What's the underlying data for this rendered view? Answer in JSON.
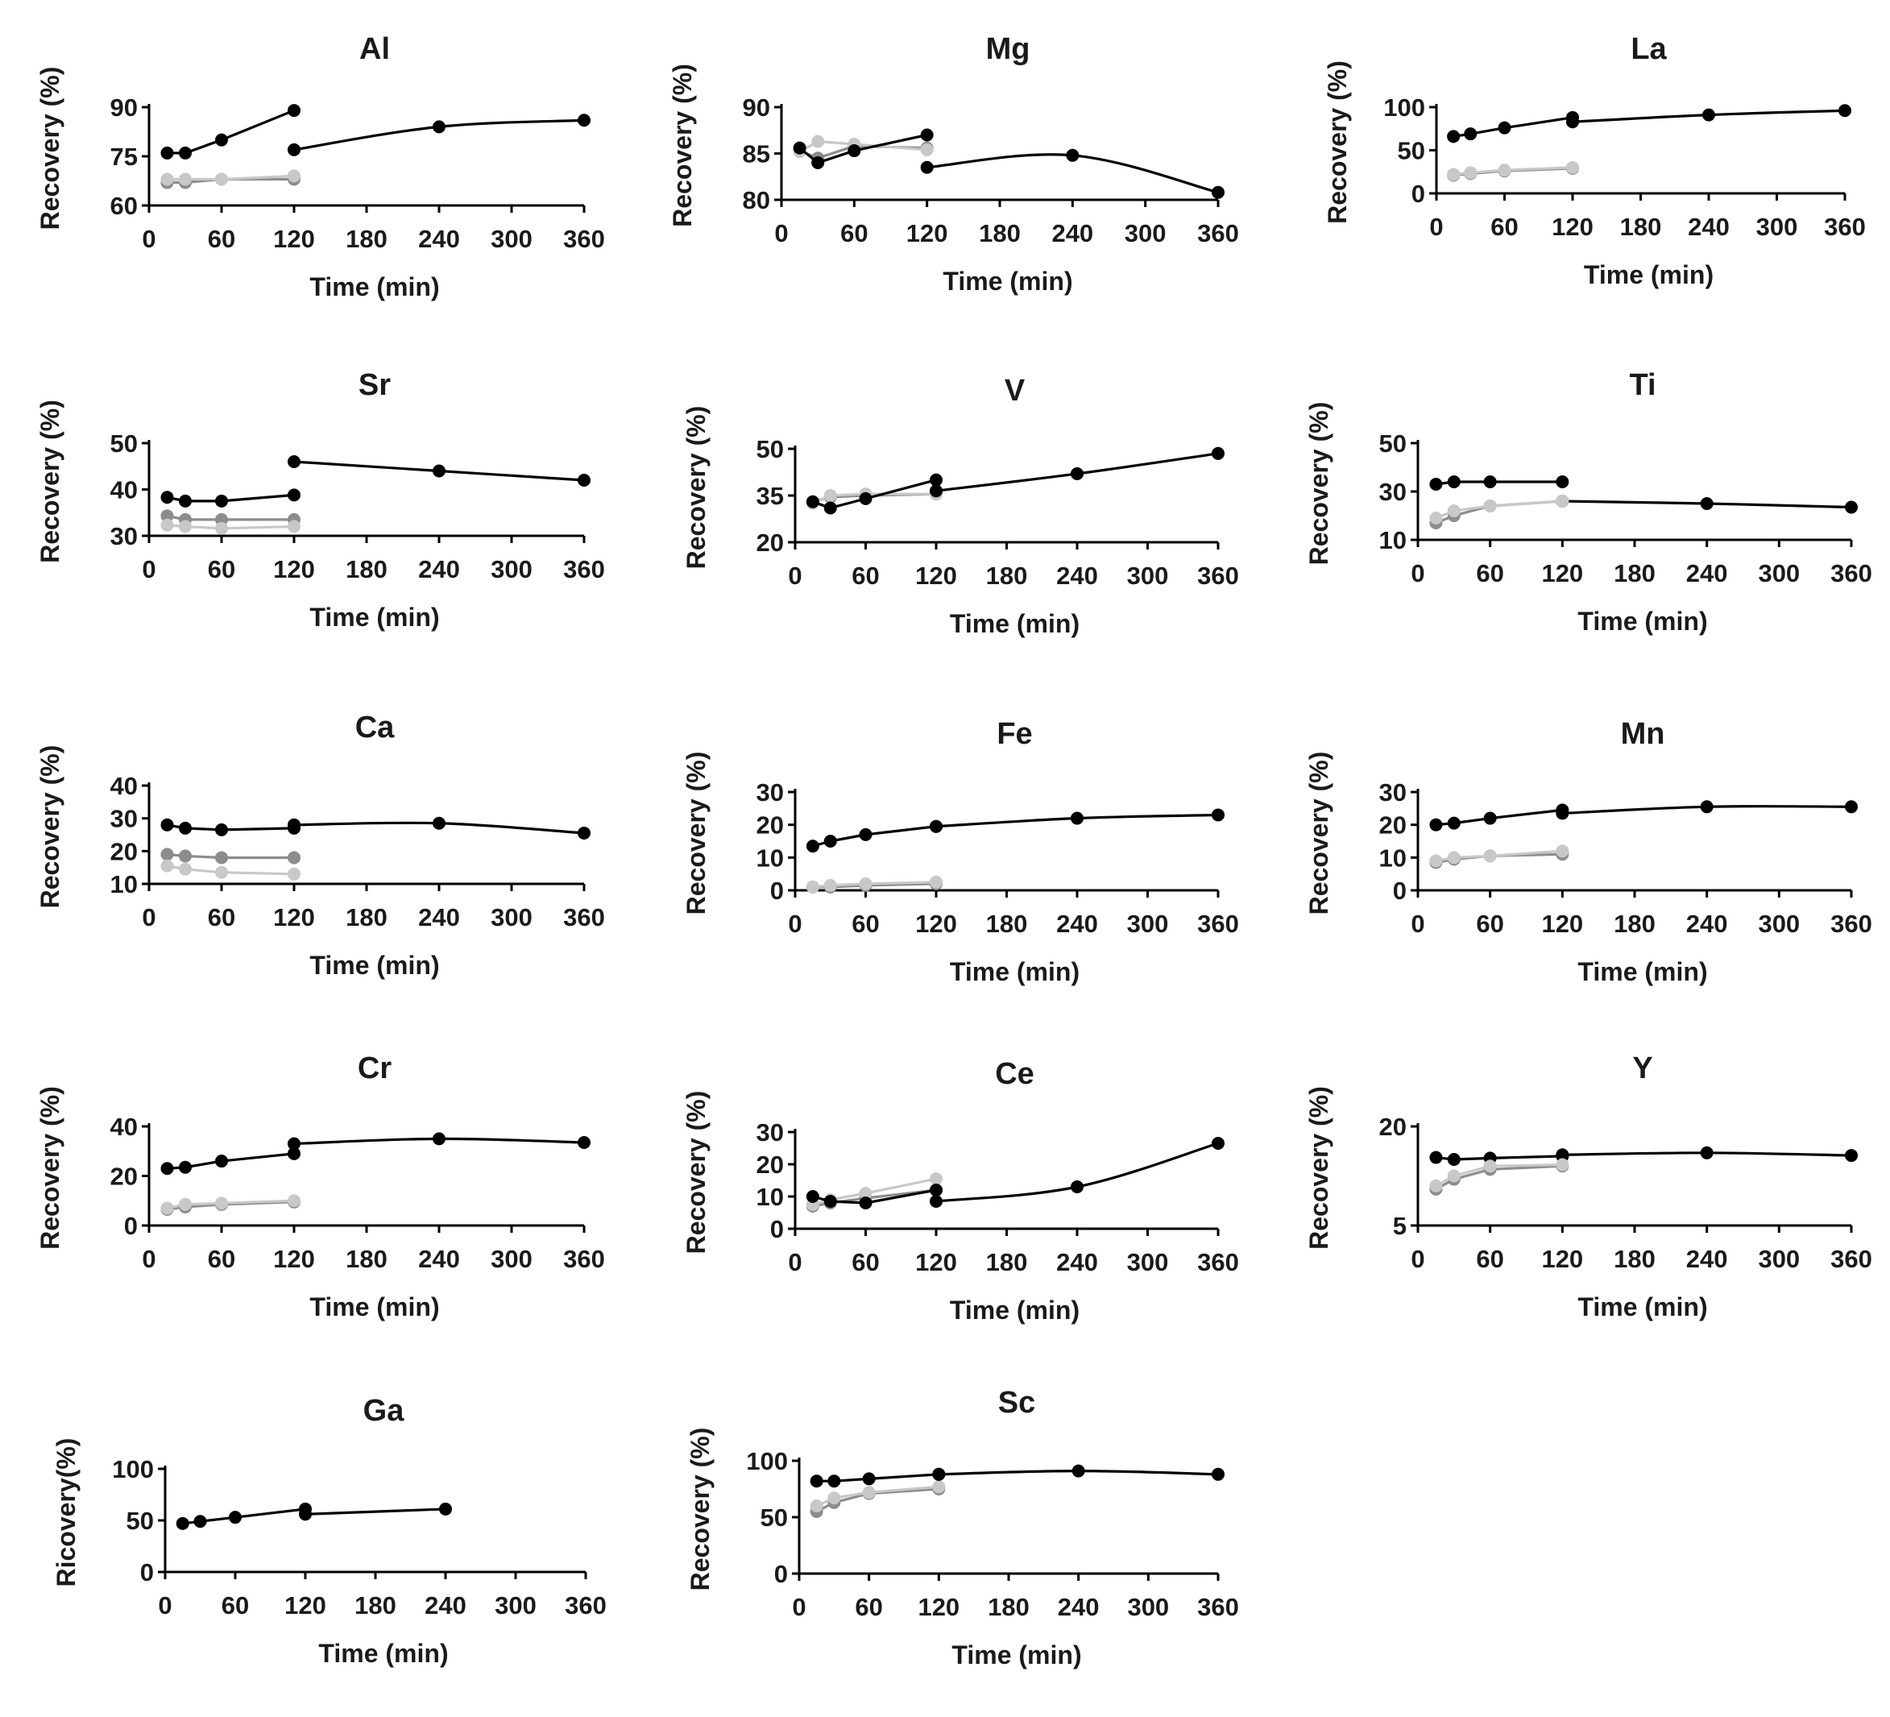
{
  "colors": {
    "dark": "#000000",
    "mid": "#8c8c8c",
    "light": "#c8c8c8"
  },
  "chart_data": [
    {
      "type": "line",
      "title": "Al",
      "xlabel": "Time (min)",
      "ylabel": "Recovery (%)",
      "xlim": [
        0,
        360
      ],
      "ylim": [
        60,
        90
      ],
      "xticks": [
        "0",
        "60",
        "120",
        "180",
        "240",
        "300",
        "360"
      ],
      "yticks": [
        "60",
        "75",
        "90"
      ],
      "series": [
        {
          "color": "dark",
          "x": [
            15,
            30,
            60,
            120
          ],
          "y": [
            76,
            76,
            80,
            89
          ]
        },
        {
          "color": "dark",
          "smooth": true,
          "x": [
            120,
            240,
            360
          ],
          "y": [
            77,
            84,
            86
          ]
        },
        {
          "color": "mid",
          "x": [
            15,
            30,
            60,
            120
          ],
          "y": [
            67,
            67,
            68,
            68
          ]
        },
        {
          "color": "light",
          "x": [
            15,
            30,
            60,
            120
          ],
          "y": [
            68,
            68,
            68,
            69
          ]
        }
      ]
    },
    {
      "type": "line",
      "title": "Mg",
      "xlabel": "Time (min)",
      "ylabel": "Recovery (%)",
      "xlim": [
        0,
        360
      ],
      "ylim": [
        80,
        90
      ],
      "xticks": [
        "0",
        "60",
        "120",
        "180",
        "240",
        "300",
        "360"
      ],
      "yticks": [
        "80",
        "85",
        "90"
      ],
      "series": [
        {
          "color": "mid",
          "x": [
            15,
            30,
            60,
            120
          ],
          "y": [
            85.3,
            84.5,
            85.8,
            85.6
          ]
        },
        {
          "color": "light",
          "x": [
            15,
            30,
            60,
            120
          ],
          "y": [
            85.2,
            86.3,
            86.0,
            85.4
          ]
        },
        {
          "color": "dark",
          "x": [
            15,
            30,
            60,
            120
          ],
          "y": [
            85.6,
            84.0,
            85.3,
            87.0
          ]
        },
        {
          "color": "dark",
          "smooth": true,
          "x": [
            120,
            240,
            360
          ],
          "y": [
            83.5,
            84.8,
            80.8
          ]
        }
      ]
    },
    {
      "type": "line",
      "title": "La",
      "xlabel": "Time (min)",
      "ylabel": "Recovery (%)",
      "xlim": [
        0,
        360
      ],
      "ylim": [
        0,
        100
      ],
      "xticks": [
        "0",
        "60",
        "120",
        "180",
        "240",
        "300",
        "360"
      ],
      "yticks": [
        "0",
        "50",
        "100"
      ],
      "series": [
        {
          "color": "dark",
          "x": [
            15,
            30,
            60,
            120
          ],
          "y": [
            66,
            69,
            76,
            88
          ]
        },
        {
          "color": "dark",
          "smooth": true,
          "x": [
            120,
            240,
            360
          ],
          "y": [
            83,
            91,
            96
          ]
        },
        {
          "color": "mid",
          "x": [
            15,
            30,
            60,
            120
          ],
          "y": [
            21,
            23,
            26,
            29
          ]
        },
        {
          "color": "light",
          "x": [
            15,
            30,
            60,
            120
          ],
          "y": [
            22,
            24,
            27,
            30
          ]
        }
      ]
    },
    {
      "type": "line",
      "title": "Sr",
      "xlabel": "Time (min)",
      "ylabel": "Recovery (%)",
      "xlim": [
        0,
        360
      ],
      "ylim": [
        30,
        50
      ],
      "xticks": [
        "0",
        "60",
        "120",
        "180",
        "240",
        "300",
        "360"
      ],
      "yticks": [
        "30",
        "40",
        "50"
      ],
      "series": [
        {
          "color": "dark",
          "x": [
            15,
            30,
            60,
            120
          ],
          "y": [
            38.3,
            37.5,
            37.5,
            38.8
          ]
        },
        {
          "color": "dark",
          "smooth": true,
          "x": [
            120,
            240,
            360
          ],
          "y": [
            46,
            44,
            42
          ]
        },
        {
          "color": "mid",
          "x": [
            15,
            30,
            60,
            120
          ],
          "y": [
            34.3,
            33.5,
            33.5,
            33.5
          ]
        },
        {
          "color": "light",
          "x": [
            15,
            30,
            60,
            120
          ],
          "y": [
            32.3,
            32.0,
            31.6,
            32.0
          ]
        }
      ]
    },
    {
      "type": "line",
      "title": "V",
      "xlabel": "Time (min)",
      "ylabel": "Recovery (%)",
      "xlim": [
        0,
        360
      ],
      "ylim": [
        20,
        50
      ],
      "xticks": [
        "0",
        "60",
        "120",
        "180",
        "240",
        "300",
        "360"
      ],
      "yticks": [
        "20",
        "35",
        "50"
      ],
      "series": [
        {
          "color": "mid",
          "x": [
            15,
            30,
            60,
            120
          ],
          "y": [
            33,
            34.5,
            35,
            35.5
          ]
        },
        {
          "color": "light",
          "x": [
            15,
            30,
            60,
            120
          ],
          "y": [
            32.5,
            35,
            35.5,
            35.5
          ]
        },
        {
          "color": "dark",
          "x": [
            15,
            30,
            60,
            120
          ],
          "y": [
            33,
            31,
            34,
            40
          ]
        },
        {
          "color": "dark",
          "smooth": true,
          "x": [
            120,
            240,
            360
          ],
          "y": [
            36.5,
            42,
            48.5
          ]
        }
      ]
    },
    {
      "type": "line",
      "title": "Ti",
      "xlabel": "Time (min)",
      "ylabel": "Recovery (%)",
      "xlim": [
        0,
        360
      ],
      "ylim": [
        10,
        50
      ],
      "xticks": [
        "0",
        "60",
        "120",
        "180",
        "240",
        "300",
        "360"
      ],
      "yticks": [
        "10",
        "30",
        "50"
      ],
      "series": [
        {
          "color": "dark",
          "x": [
            15,
            30,
            60,
            120
          ],
          "y": [
            33,
            34,
            34,
            34
          ]
        },
        {
          "color": "dark",
          "smooth": true,
          "x": [
            120,
            240,
            360
          ],
          "y": [
            26,
            25,
            23.5
          ]
        },
        {
          "color": "mid",
          "x": [
            15,
            30,
            60,
            120
          ],
          "y": [
            17,
            20,
            24,
            26
          ]
        },
        {
          "color": "light",
          "x": [
            15,
            30,
            60,
            120
          ],
          "y": [
            19,
            22,
            24,
            26
          ]
        }
      ]
    },
    {
      "type": "line",
      "title": "Ca",
      "xlabel": "Time (min)",
      "ylabel": "Recovery (%)",
      "xlim": [
        0,
        360
      ],
      "ylim": [
        10,
        40
      ],
      "xticks": [
        "0",
        "60",
        "120",
        "180",
        "240",
        "300",
        "360"
      ],
      "yticks": [
        "10",
        "20",
        "30",
        "40"
      ],
      "series": [
        {
          "color": "dark",
          "x": [
            15,
            30,
            60,
            120
          ],
          "y": [
            28,
            27,
            26.5,
            27
          ]
        },
        {
          "color": "dark",
          "smooth": true,
          "x": [
            120,
            240,
            360
          ],
          "y": [
            28,
            28.5,
            25.5
          ]
        },
        {
          "color": "mid",
          "x": [
            15,
            30,
            60,
            120
          ],
          "y": [
            19,
            18.5,
            18,
            18
          ]
        },
        {
          "color": "light",
          "x": [
            15,
            30,
            60,
            120
          ],
          "y": [
            15.5,
            14.5,
            13.5,
            13
          ]
        }
      ]
    },
    {
      "type": "line",
      "title": "Fe",
      "xlabel": "Time (min)",
      "ylabel": "Recovery (%)",
      "xlim": [
        0,
        360
      ],
      "ylim": [
        0,
        30
      ],
      "xticks": [
        "0",
        "60",
        "120",
        "180",
        "240",
        "300",
        "360"
      ],
      "yticks": [
        "0",
        "10",
        "20",
        "30"
      ],
      "series": [
        {
          "color": "dark",
          "x": [
            15,
            30,
            60,
            120
          ],
          "y": [
            13.5,
            15,
            17,
            19.5
          ]
        },
        {
          "color": "dark",
          "smooth": true,
          "x": [
            120,
            240,
            360
          ],
          "y": [
            19.5,
            22,
            23
          ]
        },
        {
          "color": "mid",
          "x": [
            15,
            30,
            60,
            120
          ],
          "y": [
            1,
            1,
            1.5,
            2
          ]
        },
        {
          "color": "light",
          "x": [
            15,
            30,
            60,
            120
          ],
          "y": [
            1,
            1.5,
            2,
            2.5
          ]
        }
      ]
    },
    {
      "type": "line",
      "title": "Mn",
      "xlabel": "Time (min)",
      "ylabel": "Recovery (%)",
      "xlim": [
        0,
        360
      ],
      "ylim": [
        0,
        30
      ],
      "xticks": [
        "0",
        "60",
        "120",
        "180",
        "240",
        "300",
        "360"
      ],
      "yticks": [
        "0",
        "10",
        "20",
        "30"
      ],
      "series": [
        {
          "color": "dark",
          "x": [
            15,
            30,
            60,
            120
          ],
          "y": [
            20,
            20.5,
            22,
            24.5
          ]
        },
        {
          "color": "dark",
          "smooth": true,
          "x": [
            120,
            240,
            360
          ],
          "y": [
            23.5,
            25.5,
            25.5
          ]
        },
        {
          "color": "mid",
          "x": [
            15,
            30,
            60,
            120
          ],
          "y": [
            8.5,
            9.5,
            10.5,
            11
          ]
        },
        {
          "color": "light",
          "x": [
            15,
            30,
            60,
            120
          ],
          "y": [
            9,
            10,
            10.5,
            12
          ]
        }
      ]
    },
    {
      "type": "line",
      "title": "Cr",
      "xlabel": "Time (min)",
      "ylabel": "Recovery (%)",
      "xlim": [
        0,
        360
      ],
      "ylim": [
        0,
        40
      ],
      "xticks": [
        "0",
        "60",
        "120",
        "180",
        "240",
        "300",
        "360"
      ],
      "yticks": [
        "0",
        "20",
        "40"
      ],
      "series": [
        {
          "color": "dark",
          "x": [
            15,
            30,
            60,
            120
          ],
          "y": [
            23,
            23.5,
            26,
            29
          ]
        },
        {
          "color": "dark",
          "smooth": true,
          "x": [
            120,
            240,
            360
          ],
          "y": [
            33,
            35,
            33.5
          ]
        },
        {
          "color": "mid",
          "x": [
            15,
            30,
            60,
            120
          ],
          "y": [
            6.5,
            7.5,
            8.5,
            9.5
          ]
        },
        {
          "color": "light",
          "x": [
            15,
            30,
            60,
            120
          ],
          "y": [
            7,
            8.5,
            9,
            10
          ]
        }
      ]
    },
    {
      "type": "line",
      "title": "Ce",
      "xlabel": "Time (min)",
      "ylabel": "Recovery (%)",
      "xlim": [
        0,
        360
      ],
      "ylim": [
        0,
        30
      ],
      "xticks": [
        "0",
        "60",
        "120",
        "180",
        "240",
        "300",
        "360"
      ],
      "yticks": [
        "0",
        "10",
        "20",
        "30"
      ],
      "series": [
        {
          "color": "mid",
          "x": [
            15,
            30,
            60,
            120
          ],
          "y": [
            7,
            8,
            9.5,
            12
          ]
        },
        {
          "color": "light",
          "x": [
            15,
            30,
            60,
            120
          ],
          "y": [
            7.5,
            9,
            11,
            15.5
          ]
        },
        {
          "color": "dark",
          "x": [
            15,
            30,
            60,
            120
          ],
          "y": [
            10,
            8.5,
            8,
            12
          ]
        },
        {
          "color": "dark",
          "smooth": true,
          "x": [
            120,
            240,
            360
          ],
          "y": [
            8.5,
            13,
            26.5
          ]
        }
      ]
    },
    {
      "type": "line",
      "title": "Y",
      "xlabel": "Time (min)",
      "ylabel": "Recovery (%)",
      "xlim": [
        0,
        360
      ],
      "ylim": [
        5,
        20
      ],
      "xticks": [
        "0",
        "60",
        "120",
        "180",
        "240",
        "300",
        "360"
      ],
      "yticks": [
        "5",
        "20"
      ],
      "series": [
        {
          "color": "dark",
          "x": [
            15,
            30,
            60,
            120
          ],
          "y": [
            15.3,
            15,
            15.2,
            15.5
          ]
        },
        {
          "color": "dark",
          "smooth": true,
          "x": [
            120,
            240,
            360
          ],
          "y": [
            15.7,
            16,
            15.6
          ]
        },
        {
          "color": "mid",
          "x": [
            15,
            30,
            60,
            120
          ],
          "y": [
            10.5,
            12,
            13.5,
            14
          ]
        },
        {
          "color": "light",
          "x": [
            15,
            30,
            60,
            120
          ],
          "y": [
            11,
            12.5,
            14,
            14.2
          ]
        }
      ]
    },
    {
      "type": "line",
      "title": "Ga",
      "xlabel": "Time (min)",
      "ylabel": "Ricovery(%)",
      "xlim": [
        0,
        360
      ],
      "ylim": [
        0,
        100
      ],
      "xticks": [
        "0",
        "60",
        "120",
        "180",
        "240",
        "300",
        "360"
      ],
      "yticks": [
        "0",
        "50",
        "100"
      ],
      "series": [
        {
          "color": "dark",
          "x": [
            15,
            30,
            60,
            120
          ],
          "y": [
            47,
            49,
            53,
            61
          ]
        },
        {
          "color": "dark",
          "smooth": true,
          "x": [
            120,
            240
          ],
          "y": [
            56,
            61
          ]
        }
      ]
    },
    {
      "type": "line",
      "title": "Sc",
      "xlabel": "Time (min)",
      "ylabel": "Recovery (%)",
      "xlim": [
        0,
        360
      ],
      "ylim": [
        0,
        100
      ],
      "xticks": [
        "0",
        "60",
        "120",
        "180",
        "240",
        "300",
        "360"
      ],
      "yticks": [
        "0",
        "50",
        "100"
      ],
      "series": [
        {
          "color": "mid",
          "x": [
            15,
            30,
            60,
            120
          ],
          "y": [
            55,
            63,
            71,
            75
          ]
        },
        {
          "color": "light",
          "x": [
            15,
            30,
            60,
            120
          ],
          "y": [
            60,
            67,
            72,
            77
          ]
        },
        {
          "color": "dark",
          "x": [
            15,
            30,
            60,
            120
          ],
          "y": [
            82,
            82,
            84,
            88
          ]
        },
        {
          "color": "dark",
          "smooth": true,
          "x": [
            120,
            240,
            360
          ],
          "y": [
            88,
            91,
            88
          ]
        }
      ]
    }
  ]
}
